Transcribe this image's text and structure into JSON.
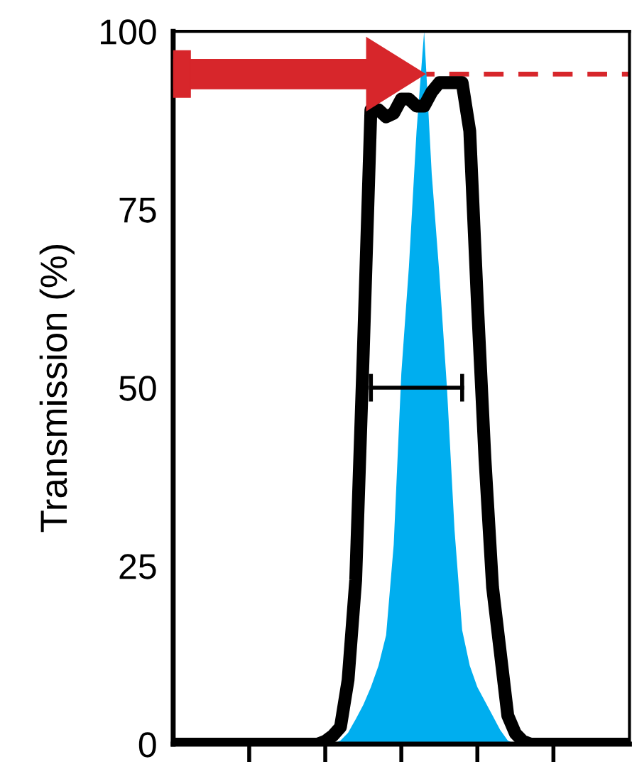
{
  "chart_data": {
    "type": "line",
    "ylabel": "Transmission (%)",
    "categories": [
      null,
      null,
      null,
      null,
      null,
      null,
      null,
      null,
      null,
      null,
      null,
      null,
      null,
      null,
      null,
      null,
      null,
      null,
      null,
      null,
      null,
      null,
      null,
      null,
      null,
      null,
      null,
      null,
      null,
      null,
      null,
      null,
      null,
      null,
      null,
      null,
      null,
      null,
      null,
      null,
      null,
      null,
      null,
      null,
      null,
      null,
      null,
      null,
      null,
      null,
      null,
      null,
      null,
      null,
      null,
      null,
      null,
      null,
      null,
      null,
      null
    ],
    "ylim": [
      0,
      100
    ],
    "yticks": [
      0,
      25,
      50,
      75,
      100
    ],
    "series": [
      {
        "type": "area",
        "color": "#00aeef",
        "values": [
          null,
          null,
          null,
          null,
          null,
          null,
          null,
          null,
          null,
          null,
          null,
          null,
          null,
          null,
          null,
          null,
          null,
          null,
          null,
          null,
          null,
          0,
          0.5,
          1.6,
          3.5,
          5.5,
          8,
          11,
          15.3,
          28,
          52,
          67,
          86,
          100,
          80,
          66,
          50,
          30,
          16,
          11,
          8,
          6,
          4,
          2,
          0.5,
          0,
          null,
          null,
          null,
          null,
          null,
          null,
          null,
          null,
          null,
          null,
          null,
          null,
          null,
          null,
          null
        ]
      },
      {
        "color": "#000000",
        "values": [
          0,
          0,
          0,
          0,
          0,
          0,
          0,
          0,
          0,
          0,
          0,
          0,
          0,
          0,
          0,
          0,
          0,
          0,
          0,
          0,
          0.4,
          1.2,
          2.4,
          9,
          23,
          55,
          89,
          89,
          88,
          88.5,
          90.5,
          90.5,
          89.5,
          89.5,
          91.5,
          92.8,
          92.8,
          92.8,
          92.8,
          86,
          62,
          40,
          22,
          13,
          4,
          1.5,
          0.4,
          0,
          0,
          0,
          0,
          0,
          0,
          0,
          0,
          0,
          0,
          0,
          0,
          0,
          0
        ]
      },
      {
        "type": "line",
        "marker": "none",
        "color": "#000000",
        "values": [
          null,
          null,
          null,
          null,
          null,
          null,
          null,
          null,
          null,
          null,
          null,
          null,
          null,
          null,
          null,
          null,
          null,
          null,
          null,
          null,
          null,
          null,
          null,
          null,
          null,
          null,
          50,
          50,
          50,
          50,
          50,
          50,
          50,
          50,
          50,
          50,
          50,
          50,
          50,
          null,
          null,
          null,
          null,
          null,
          null,
          null,
          null,
          null,
          null,
          null,
          null,
          null,
          null,
          null,
          null,
          null,
          null,
          null,
          null,
          null,
          null
        ]
      }
    ],
    "ref_lines": [
      {
        "axis": "y",
        "value": 94,
        "color": "#d7262b",
        "line_style": "dashed"
      }
    ]
  }
}
